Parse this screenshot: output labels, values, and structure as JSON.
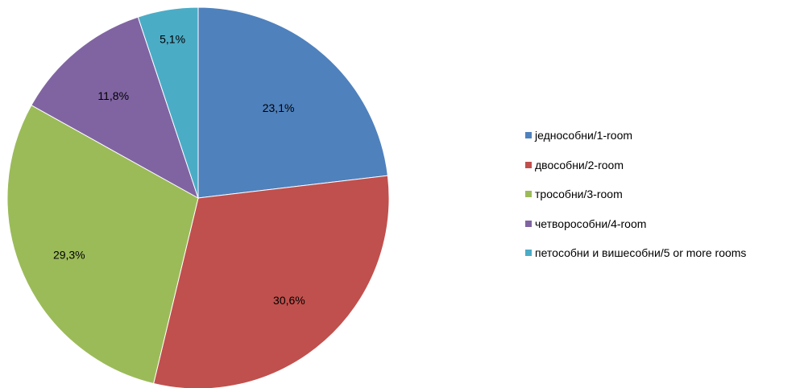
{
  "chart_data": {
    "type": "pie",
    "categories": [
      "једнособни/1-room",
      "двособни/2-room",
      "трособни/3-room",
      "четворособни/4-room",
      "петособни и вишесобни/5 or more rooms"
    ],
    "values": [
      23.1,
      30.6,
      29.3,
      11.8,
      5.1
    ],
    "data_labels": [
      "23,1%",
      "30,6%",
      "29,3%",
      "11,8%",
      "5,1%"
    ],
    "colors": [
      "#4F81BD",
      "#C0504D",
      "#9BBB59",
      "#8064A2",
      "#4BACC6"
    ],
    "legend_position": "right",
    "start_angle": "12 o'clock",
    "direction": "clockwise"
  }
}
